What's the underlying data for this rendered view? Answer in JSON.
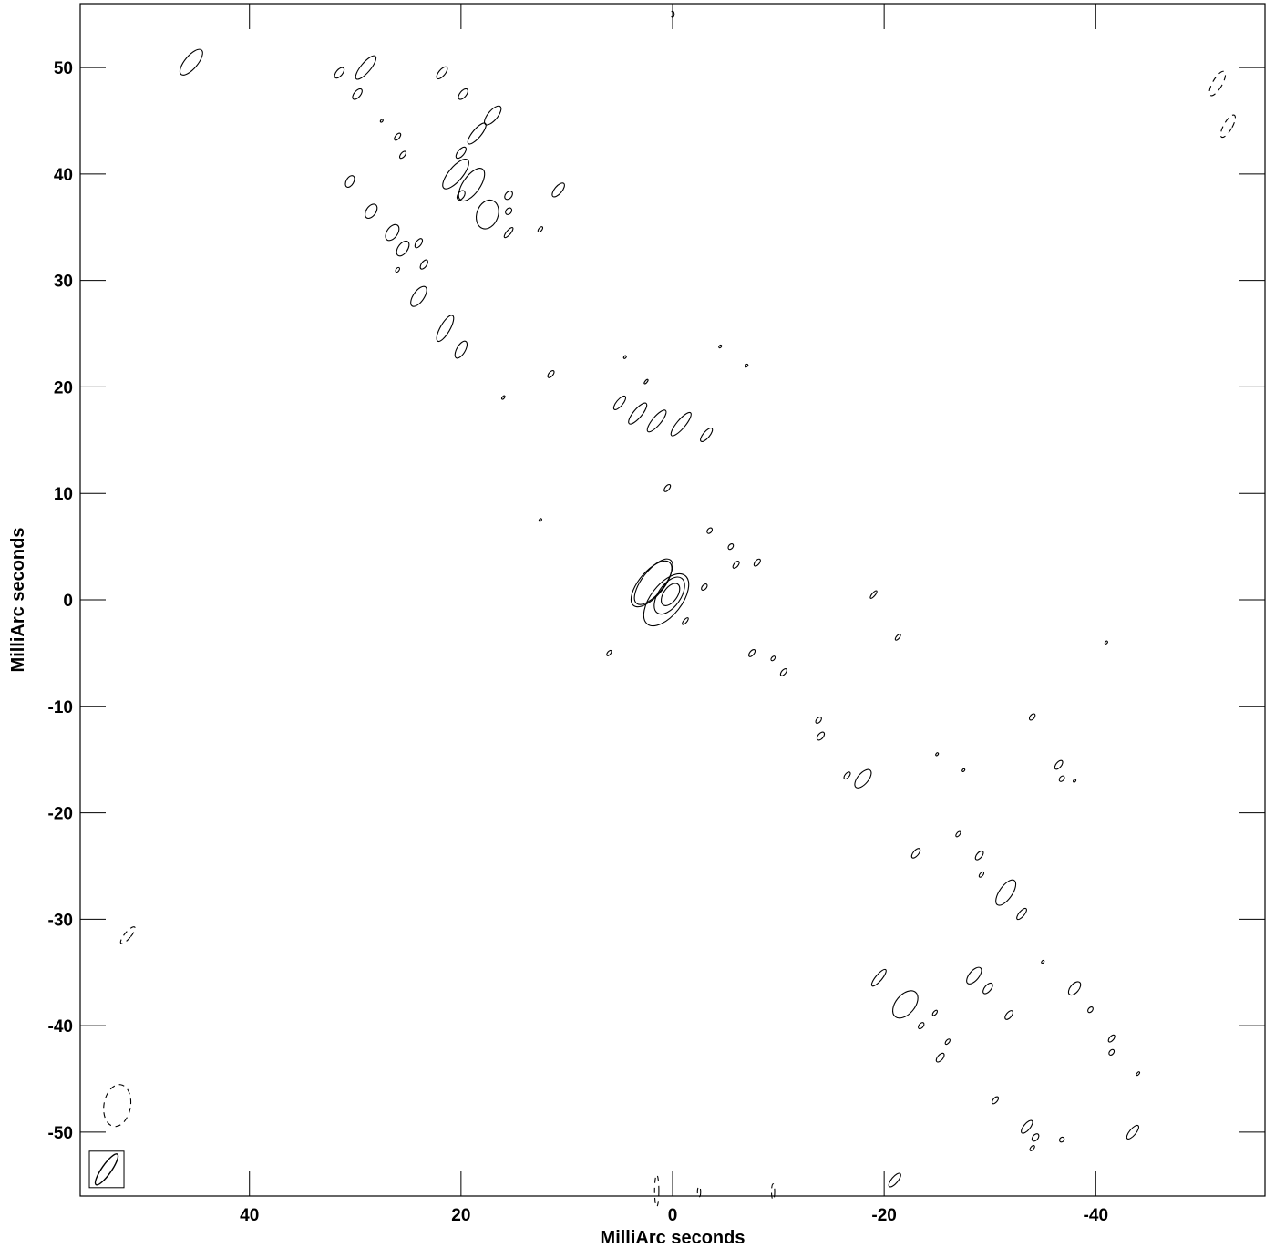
{
  "chart_data": {
    "type": "contour",
    "title": "",
    "xlabel": "MilliArc seconds",
    "ylabel": "MilliArc seconds",
    "xlim": [
      56,
      -56
    ],
    "ylim": [
      -56,
      56
    ],
    "x_ticks": [
      40,
      20,
      0,
      -20,
      -40
    ],
    "y_ticks": [
      50,
      40,
      30,
      20,
      10,
      0,
      -10,
      -20,
      -30,
      -40,
      -50
    ],
    "x_tick_labels": [
      "40",
      "20",
      "0",
      "-20",
      "-40"
    ],
    "y_tick_labels": [
      "50",
      "40",
      "30",
      "20",
      "10",
      "0",
      "-10",
      "-20",
      "-30",
      "-40",
      "-50"
    ],
    "beam": {
      "x": 53.5,
      "y": -53.5,
      "major": 3.5,
      "minor": 0.9,
      "pa_deg": 35
    },
    "core_contours": [
      {
        "x": 0.2,
        "y": 0.5,
        "major": 2.4,
        "minor": 1.3,
        "pa_deg": 35
      },
      {
        "x": 0.3,
        "y": 0.4,
        "major": 4.0,
        "minor": 2.1,
        "pa_deg": 35
      },
      {
        "x": 0.6,
        "y": 0.0,
        "major": 5.8,
        "minor": 2.9,
        "pa_deg": 38
      },
      {
        "x": 1.8,
        "y": 1.7,
        "major": 5.2,
        "minor": 2.1,
        "pa_deg": 38
      }
    ],
    "components": [
      {
        "x": 45.5,
        "y": 50.5,
        "major": 3.0,
        "minor": 1.2,
        "pa_deg": 40
      },
      {
        "x": 31.5,
        "y": 49.5,
        "major": 1.2,
        "minor": 0.6,
        "pa_deg": 40
      },
      {
        "x": 29.0,
        "y": 50.0,
        "major": 2.8,
        "minor": 0.9,
        "pa_deg": 40
      },
      {
        "x": 29.8,
        "y": 47.5,
        "major": 1.2,
        "minor": 0.6,
        "pa_deg": 40
      },
      {
        "x": 21.8,
        "y": 49.5,
        "major": 1.4,
        "minor": 0.6,
        "pa_deg": 40
      },
      {
        "x": 19.8,
        "y": 47.5,
        "major": 1.2,
        "minor": 0.6,
        "pa_deg": 40
      },
      {
        "x": 17.0,
        "y": 45.5,
        "major": 2.2,
        "minor": 0.9,
        "pa_deg": 40
      },
      {
        "x": 18.5,
        "y": 43.8,
        "major": 2.5,
        "minor": 0.8,
        "pa_deg": 40
      },
      {
        "x": 26.0,
        "y": 43.5,
        "major": 0.8,
        "minor": 0.4,
        "pa_deg": 40
      },
      {
        "x": 25.5,
        "y": 41.8,
        "major": 0.8,
        "minor": 0.4,
        "pa_deg": 40
      },
      {
        "x": 20.0,
        "y": 42.0,
        "major": 1.3,
        "minor": 0.6,
        "pa_deg": 40
      },
      {
        "x": 20.5,
        "y": 40.0,
        "major": 3.5,
        "minor": 1.3,
        "pa_deg": 40
      },
      {
        "x": 19.0,
        "y": 39.0,
        "major": 3.6,
        "minor": 1.6,
        "pa_deg": 35
      },
      {
        "x": 20.0,
        "y": 38.0,
        "major": 1.0,
        "minor": 0.6,
        "pa_deg": 35
      },
      {
        "x": 17.5,
        "y": 36.2,
        "major": 2.8,
        "minor": 2.0,
        "pa_deg": 20
      },
      {
        "x": 15.5,
        "y": 38.0,
        "major": 0.9,
        "minor": 0.6,
        "pa_deg": 40
      },
      {
        "x": 15.5,
        "y": 36.5,
        "major": 0.7,
        "minor": 0.5,
        "pa_deg": 40
      },
      {
        "x": 15.5,
        "y": 34.5,
        "major": 1.2,
        "minor": 0.4,
        "pa_deg": 40
      },
      {
        "x": 12.5,
        "y": 34.8,
        "major": 0.6,
        "minor": 0.3,
        "pa_deg": 40
      },
      {
        "x": 10.8,
        "y": 38.5,
        "major": 1.6,
        "minor": 0.7,
        "pa_deg": 40
      },
      {
        "x": 30.5,
        "y": 39.3,
        "major": 1.2,
        "minor": 0.7,
        "pa_deg": 30
      },
      {
        "x": 28.5,
        "y": 36.5,
        "major": 1.5,
        "minor": 0.9,
        "pa_deg": 35
      },
      {
        "x": 26.5,
        "y": 34.5,
        "major": 1.7,
        "minor": 1.0,
        "pa_deg": 35
      },
      {
        "x": 25.5,
        "y": 33.0,
        "major": 1.6,
        "minor": 0.9,
        "pa_deg": 35
      },
      {
        "x": 24.0,
        "y": 33.5,
        "major": 1.0,
        "minor": 0.5,
        "pa_deg": 35
      },
      {
        "x": 23.5,
        "y": 31.5,
        "major": 1.0,
        "minor": 0.5,
        "pa_deg": 35
      },
      {
        "x": 26.0,
        "y": 31.0,
        "major": 0.5,
        "minor": 0.3,
        "pa_deg": 35
      },
      {
        "x": 24.0,
        "y": 28.5,
        "major": 2.2,
        "minor": 1.0,
        "pa_deg": 35
      },
      {
        "x": 21.5,
        "y": 25.5,
        "major": 2.8,
        "minor": 0.9,
        "pa_deg": 30
      },
      {
        "x": 20.0,
        "y": 23.5,
        "major": 1.8,
        "minor": 0.8,
        "pa_deg": 30
      },
      {
        "x": 11.5,
        "y": 21.2,
        "major": 0.8,
        "minor": 0.4,
        "pa_deg": 40
      },
      {
        "x": 5.0,
        "y": 18.5,
        "major": 1.6,
        "minor": 0.6,
        "pa_deg": 40
      },
      {
        "x": 3.3,
        "y": 17.5,
        "major": 2.5,
        "minor": 0.8,
        "pa_deg": 40
      },
      {
        "x": 1.5,
        "y": 16.8,
        "major": 2.6,
        "minor": 0.8,
        "pa_deg": 40
      },
      {
        "x": -0.8,
        "y": 16.5,
        "major": 2.8,
        "minor": 0.8,
        "pa_deg": 40
      },
      {
        "x": -3.2,
        "y": 15.5,
        "major": 1.6,
        "minor": 0.6,
        "pa_deg": 40
      },
      {
        "x": 0.5,
        "y": 10.5,
        "major": 0.8,
        "minor": 0.4,
        "pa_deg": 40
      },
      {
        "x": -3.5,
        "y": 6.5,
        "major": 0.6,
        "minor": 0.4,
        "pa_deg": 40
      },
      {
        "x": -5.5,
        "y": 5.0,
        "major": 0.6,
        "minor": 0.4,
        "pa_deg": 40
      },
      {
        "x": -6.0,
        "y": 3.3,
        "major": 0.8,
        "minor": 0.4,
        "pa_deg": 40
      },
      {
        "x": -8.0,
        "y": 3.5,
        "major": 0.8,
        "minor": 0.4,
        "pa_deg": 40
      },
      {
        "x": -3.0,
        "y": 1.2,
        "major": 0.7,
        "minor": 0.4,
        "pa_deg": 40
      },
      {
        "x": -1.2,
        "y": -2.0,
        "major": 0.8,
        "minor": 0.3,
        "pa_deg": 40
      },
      {
        "x": 6.0,
        "y": -5.0,
        "major": 0.6,
        "minor": 0.3,
        "pa_deg": 40
      },
      {
        "x": -7.5,
        "y": -5.0,
        "major": 0.8,
        "minor": 0.4,
        "pa_deg": 40
      },
      {
        "x": -9.5,
        "y": -5.5,
        "major": 0.5,
        "minor": 0.3,
        "pa_deg": 40
      },
      {
        "x": -10.5,
        "y": -6.8,
        "major": 0.8,
        "minor": 0.4,
        "pa_deg": 40
      },
      {
        "x": -13.8,
        "y": -11.3,
        "major": 0.7,
        "minor": 0.4,
        "pa_deg": 40
      },
      {
        "x": -14.0,
        "y": -12.8,
        "major": 0.9,
        "minor": 0.5,
        "pa_deg": 40
      },
      {
        "x": -16.5,
        "y": -16.5,
        "major": 0.8,
        "minor": 0.4,
        "pa_deg": 40
      },
      {
        "x": -18.0,
        "y": -16.8,
        "major": 2.1,
        "minor": 1.0,
        "pa_deg": 40
      },
      {
        "x": -19.0,
        "y": 0.5,
        "major": 0.9,
        "minor": 0.3,
        "pa_deg": 40
      },
      {
        "x": -21.3,
        "y": -3.5,
        "major": 0.7,
        "minor": 0.3,
        "pa_deg": 40
      },
      {
        "x": -34.0,
        "y": -11.0,
        "major": 0.7,
        "minor": 0.4,
        "pa_deg": 40
      },
      {
        "x": -36.5,
        "y": -15.5,
        "major": 1.0,
        "minor": 0.5,
        "pa_deg": 40
      },
      {
        "x": -36.8,
        "y": -16.8,
        "major": 0.6,
        "minor": 0.4,
        "pa_deg": 40
      },
      {
        "x": -23.0,
        "y": -23.8,
        "major": 1.1,
        "minor": 0.5,
        "pa_deg": 40
      },
      {
        "x": -27.0,
        "y": -22.0,
        "major": 0.6,
        "minor": 0.3,
        "pa_deg": 40
      },
      {
        "x": -29.0,
        "y": -24.0,
        "major": 1.0,
        "minor": 0.5,
        "pa_deg": 40
      },
      {
        "x": -29.2,
        "y": -25.8,
        "major": 0.6,
        "minor": 0.3,
        "pa_deg": 40
      },
      {
        "x": -31.5,
        "y": -27.5,
        "major": 2.8,
        "minor": 1.2,
        "pa_deg": 35
      },
      {
        "x": -33.0,
        "y": -29.5,
        "major": 1.3,
        "minor": 0.5,
        "pa_deg": 40
      },
      {
        "x": -19.5,
        "y": -35.5,
        "major": 2.0,
        "minor": 0.6,
        "pa_deg": 40
      },
      {
        "x": -22.0,
        "y": -38.0,
        "major": 3.0,
        "minor": 1.8,
        "pa_deg": 40
      },
      {
        "x": -23.5,
        "y": -40.0,
        "major": 0.7,
        "minor": 0.4,
        "pa_deg": 40
      },
      {
        "x": -24.8,
        "y": -38.8,
        "major": 0.6,
        "minor": 0.3,
        "pa_deg": 40
      },
      {
        "x": -26.0,
        "y": -41.5,
        "major": 0.6,
        "minor": 0.3,
        "pa_deg": 40
      },
      {
        "x": -25.3,
        "y": -43.0,
        "major": 1.0,
        "minor": 0.5,
        "pa_deg": 40
      },
      {
        "x": -28.5,
        "y": -35.3,
        "major": 1.9,
        "minor": 0.9,
        "pa_deg": 40
      },
      {
        "x": -29.8,
        "y": -36.5,
        "major": 1.2,
        "minor": 0.6,
        "pa_deg": 40
      },
      {
        "x": -31.8,
        "y": -39.0,
        "major": 1.0,
        "minor": 0.5,
        "pa_deg": 40
      },
      {
        "x": -38.0,
        "y": -36.5,
        "major": 1.5,
        "minor": 0.8,
        "pa_deg": 40
      },
      {
        "x": -35.0,
        "y": -34.0,
        "major": 0.3,
        "minor": 0.2,
        "pa_deg": 40
      },
      {
        "x": -39.5,
        "y": -38.5,
        "major": 0.6,
        "minor": 0.4,
        "pa_deg": 40
      },
      {
        "x": -41.5,
        "y": -41.2,
        "major": 0.8,
        "minor": 0.4,
        "pa_deg": 40
      },
      {
        "x": -41.5,
        "y": -42.5,
        "major": 0.6,
        "minor": 0.4,
        "pa_deg": 40
      },
      {
        "x": -44.0,
        "y": -44.5,
        "major": 0.4,
        "minor": 0.2,
        "pa_deg": 40
      },
      {
        "x": -30.5,
        "y": -47.0,
        "major": 0.8,
        "minor": 0.4,
        "pa_deg": 40
      },
      {
        "x": -33.5,
        "y": -49.5,
        "major": 1.5,
        "minor": 0.6,
        "pa_deg": 40
      },
      {
        "x": -34.3,
        "y": -50.5,
        "major": 0.8,
        "minor": 0.5,
        "pa_deg": 40
      },
      {
        "x": -34.0,
        "y": -51.5,
        "major": 0.6,
        "minor": 0.3,
        "pa_deg": 40
      },
      {
        "x": -36.8,
        "y": -50.7,
        "major": 0.5,
        "minor": 0.4,
        "pa_deg": 40
      },
      {
        "x": -43.5,
        "y": -50.0,
        "major": 1.6,
        "minor": 0.6,
        "pa_deg": 40
      },
      {
        "x": -41.0,
        "y": -4.0,
        "major": 0.3,
        "minor": 0.2,
        "pa_deg": 40
      },
      {
        "x": -21.0,
        "y": -54.5,
        "major": 1.6,
        "minor": 0.6,
        "pa_deg": 40
      },
      {
        "x": 12.5,
        "y": 7.5,
        "major": 0.3,
        "minor": 0.2,
        "pa_deg": 40
      },
      {
        "x": 16.0,
        "y": 19.0,
        "major": 0.4,
        "minor": 0.2,
        "pa_deg": 40
      },
      {
        "x": 2.5,
        "y": 20.5,
        "major": 0.5,
        "minor": 0.2,
        "pa_deg": 40
      },
      {
        "x": -4.5,
        "y": 23.8,
        "major": 0.3,
        "minor": 0.2,
        "pa_deg": 40
      },
      {
        "x": -7.0,
        "y": 22.0,
        "major": 0.3,
        "minor": 0.2,
        "pa_deg": 40
      },
      {
        "x": 4.5,
        "y": 22.8,
        "major": 0.3,
        "minor": 0.2,
        "pa_deg": 40
      },
      {
        "x": 27.5,
        "y": 45.0,
        "major": 0.3,
        "minor": 0.2,
        "pa_deg": 40
      },
      {
        "x": -25.0,
        "y": -14.5,
        "major": 0.3,
        "minor": 0.2,
        "pa_deg": 40
      },
      {
        "x": -27.5,
        "y": -16.0,
        "major": 0.3,
        "minor": 0.2,
        "pa_deg": 40
      },
      {
        "x": -38.0,
        "y": -17.0,
        "major": 0.3,
        "minor": 0.2,
        "pa_deg": 40
      }
    ],
    "core_extended": {
      "x": 2.0,
      "y": 1.5,
      "major": 5.3,
      "minor": 2.3,
      "pa_deg": 40
    },
    "negative_contours": [
      {
        "x": -51.5,
        "y": 48.5,
        "major": 2.6,
        "minor": 0.9,
        "pa_deg": 30
      },
      {
        "x": -52.5,
        "y": 44.5,
        "major": 2.4,
        "minor": 0.8,
        "pa_deg": 30
      },
      {
        "x": 51.5,
        "y": -31.5,
        "major": 2.0,
        "minor": 0.6,
        "pa_deg": 40
      },
      {
        "x": 52.5,
        "y": -47.5,
        "major": 4.0,
        "minor": 2.5,
        "pa_deg": 10
      },
      {
        "x": 1.5,
        "y": -55.5,
        "major": 3.0,
        "minor": 0.4,
        "pa_deg": 0
      },
      {
        "x": -2.5,
        "y": -55.6,
        "major": 1.0,
        "minor": 0.3,
        "pa_deg": 0
      },
      {
        "x": -9.5,
        "y": -55.6,
        "major": 1.5,
        "minor": 0.3,
        "pa_deg": 0
      },
      {
        "x": 0.0,
        "y": 55.0,
        "major": 0.6,
        "minor": 0.3,
        "pa_deg": 0
      }
    ]
  }
}
